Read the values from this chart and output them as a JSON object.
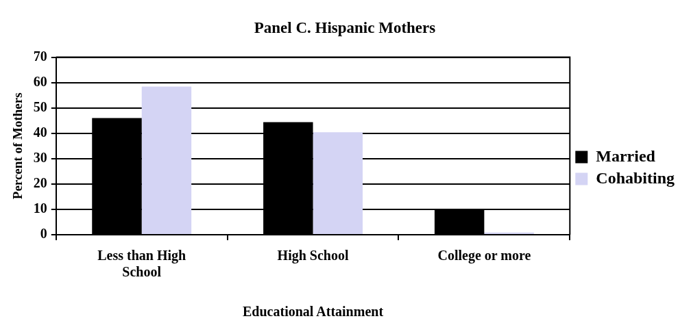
{
  "chart_data": {
    "type": "bar",
    "title": "Panel C. Hispanic Mothers",
    "xlabel": "Educational Attainment",
    "ylabel": "Percent of Mothers",
    "categories": [
      "Less than High School",
      "High School",
      "College or more"
    ],
    "series": [
      {
        "name": "Married",
        "color": "#000000",
        "values": [
          46,
          44.4,
          9.9
        ]
      },
      {
        "name": "Cohabiting",
        "color": "#d4d4f4",
        "values": [
          58.4,
          40.4,
          0.9
        ]
      }
    ],
    "ylim": [
      0,
      70
    ],
    "yticks": [
      0,
      10,
      20,
      30,
      40,
      50,
      60,
      70
    ],
    "grid": "y",
    "legend": "right"
  }
}
